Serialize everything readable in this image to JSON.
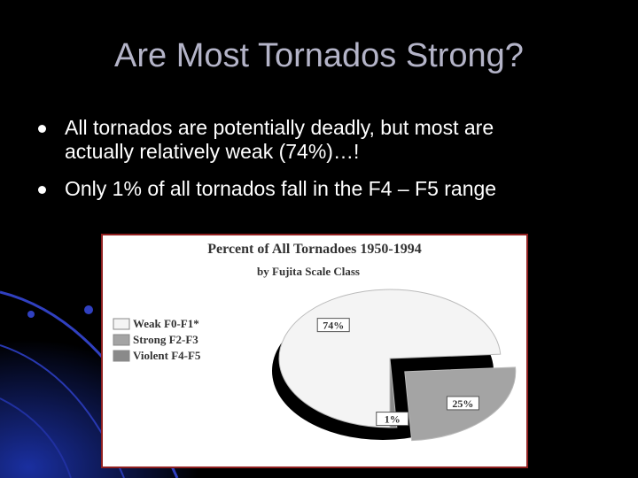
{
  "title": "Are Most Tornados Strong?",
  "bullets": [
    "All tornados are potentially deadly, but most are actually relatively weak (74%)…!",
    "Only 1% of all tornados fall in the F4 – F5 range"
  ],
  "chart_data": {
    "type": "pie",
    "title": "Percent of All Tornadoes 1950-1994",
    "subtitle": "by Fujita Scale Class",
    "categories": [
      "Weak  F0-F1*",
      "Strong  F2-F3",
      "Violent  F4-F5"
    ],
    "values": [
      74,
      25,
      1
    ],
    "value_labels": [
      "74%",
      "25%",
      "1%"
    ],
    "colors": [
      "#f4f4f4",
      "#a4a4a4",
      "#8a8a8a"
    ]
  }
}
